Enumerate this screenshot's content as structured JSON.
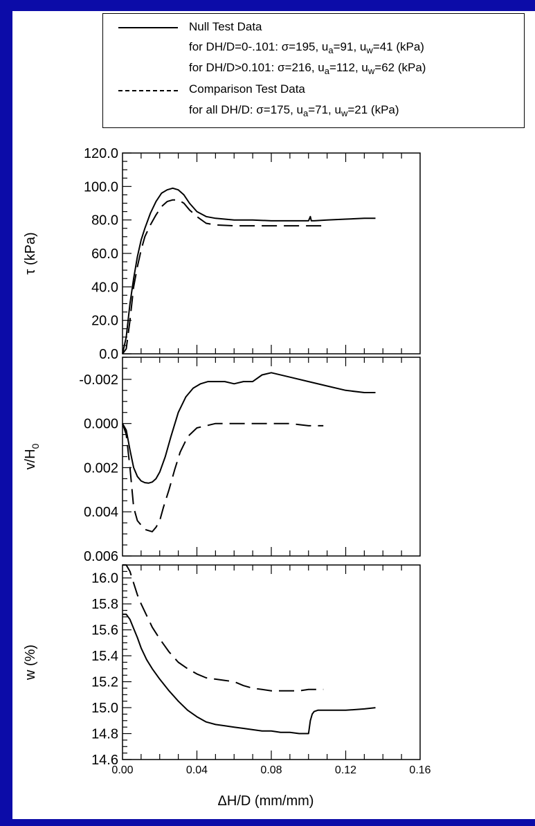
{
  "legend": {
    "null_label": "Null Test Data",
    "null_line1_prefix": "for DH/D=0-.101: σ=195, u",
    "null_line1_ua_sub": "a",
    "null_line1_mid": "=91, u",
    "null_line1_uw_sub": "w",
    "null_line1_end": "=41 (kPa)",
    "null_line2_prefix": "for DH/D>0.101: σ=216, u",
    "null_line2_ua_sub": "a",
    "null_line2_mid": "=112, u",
    "null_line2_uw_sub": "w",
    "null_line2_end": "=62 (kPa)",
    "comp_label": "Comparison Test Data",
    "comp_line_prefix": "for all DH/D: σ=175, u",
    "comp_line_ua_sub": "a",
    "comp_line_mid": "=71, u",
    "comp_line_uw_sub": "w",
    "comp_line_end": "=21 (kPa)"
  },
  "colors": {
    "frame": "#0c0ca8",
    "ink": "#000000"
  },
  "chart_data": [
    {
      "type": "line",
      "ylabel": "τ (kPa)",
      "xlim": [
        0,
        0.16
      ],
      "ylim": [
        0,
        120
      ],
      "yticks": [
        0,
        20,
        40,
        60,
        80,
        100,
        120
      ],
      "ytick_labels": [
        "0.0",
        "20.0",
        "40.0",
        "60.0",
        "80.0",
        "100.0",
        "120.0"
      ],
      "series": [
        {
          "name": "Null Test Data",
          "style": "solid",
          "x": [
            0.0,
            0.002,
            0.004,
            0.006,
            0.008,
            0.01,
            0.012,
            0.015,
            0.018,
            0.021,
            0.024,
            0.027,
            0.03,
            0.033,
            0.036,
            0.04,
            0.045,
            0.05,
            0.06,
            0.07,
            0.08,
            0.09,
            0.1,
            0.101,
            0.1015,
            0.103,
            0.11,
            0.12,
            0.13,
            0.136
          ],
          "y": [
            0,
            10,
            30,
            45,
            58,
            68,
            75,
            84,
            91,
            96,
            98,
            99,
            98,
            95,
            90,
            85,
            82,
            81,
            80,
            80,
            79.5,
            79.5,
            79.5,
            82,
            79.5,
            79.5,
            80,
            80.5,
            81,
            81
          ]
        },
        {
          "name": "Comparison Test Data",
          "style": "dashed",
          "x": [
            0.0,
            0.002,
            0.004,
            0.006,
            0.008,
            0.01,
            0.012,
            0.015,
            0.018,
            0.021,
            0.024,
            0.027,
            0.03,
            0.033,
            0.036,
            0.04,
            0.045,
            0.05,
            0.06,
            0.07,
            0.08,
            0.09,
            0.1,
            0.108
          ],
          "y": [
            0,
            3,
            20,
            40,
            52,
            62,
            70,
            77,
            83,
            88,
            91,
            92,
            92,
            90,
            86,
            82,
            78,
            77,
            76.5,
            76.5,
            76.5,
            76.5,
            76.5,
            76.5
          ]
        }
      ]
    },
    {
      "type": "line",
      "ylabel_main": "v/H",
      "ylabel_sub": "0",
      "xlim": [
        0,
        0.16
      ],
      "ylim": [
        0.006,
        -0.003
      ],
      "yticks": [
        -0.002,
        0.0,
        0.002,
        0.004,
        0.006
      ],
      "ytick_labels": [
        "-0.002",
        "0.000",
        "0.002",
        "0.004",
        "0.006"
      ],
      "series": [
        {
          "name": "Null Test Data",
          "style": "solid",
          "x": [
            0.0,
            0.002,
            0.004,
            0.006,
            0.008,
            0.01,
            0.012,
            0.014,
            0.016,
            0.018,
            0.02,
            0.023,
            0.026,
            0.03,
            0.034,
            0.038,
            0.042,
            0.046,
            0.05,
            0.055,
            0.06,
            0.065,
            0.07,
            0.075,
            0.08,
            0.09,
            0.1,
            0.11,
            0.12,
            0.13,
            0.136
          ],
          "y": [
            0.0,
            0.0003,
            0.0012,
            0.002,
            0.0024,
            0.0026,
            0.00268,
            0.0027,
            0.00265,
            0.0025,
            0.0022,
            0.0015,
            0.0006,
            -0.0005,
            -0.0012,
            -0.0016,
            -0.0018,
            -0.0019,
            -0.0019,
            -0.0019,
            -0.0018,
            -0.0019,
            -0.0019,
            -0.0022,
            -0.0023,
            -0.0021,
            -0.0019,
            -0.0017,
            -0.0015,
            -0.0014,
            -0.0014
          ]
        },
        {
          "name": "Comparison Test Data",
          "style": "dashed",
          "x": [
            0.0,
            0.002,
            0.004,
            0.006,
            0.008,
            0.01,
            0.012,
            0.014,
            0.016,
            0.018,
            0.02,
            0.022,
            0.025,
            0.028,
            0.031,
            0.035,
            0.04,
            0.045,
            0.05,
            0.055,
            0.06,
            0.07,
            0.08,
            0.09,
            0.1,
            0.108
          ],
          "y": [
            0.0,
            0.0005,
            0.002,
            0.0038,
            0.0044,
            0.0046,
            0.0048,
            0.00485,
            0.0049,
            0.0047,
            0.0044,
            0.0038,
            0.003,
            0.0021,
            0.0013,
            0.0006,
            0.0002,
            0.0001,
            0.0,
            0.0,
            0.0,
            0.0,
            0.0,
            0.0,
            0.0001,
            0.0001
          ]
        }
      ]
    },
    {
      "type": "line",
      "ylabel": "w (%)",
      "xlabel": "ΔH/D (mm/mm)",
      "xlim": [
        0,
        0.16
      ],
      "xticks": [
        0,
        0.04,
        0.08,
        0.12,
        0.16
      ],
      "xtick_labels": [
        "0.00",
        "0.04",
        "0.08",
        "0.12",
        "0.16"
      ],
      "ylim": [
        14.6,
        16.1
      ],
      "yticks": [
        14.6,
        14.8,
        15.0,
        15.2,
        15.4,
        15.6,
        15.8,
        16.0
      ],
      "ytick_labels": [
        "14.6",
        "14.8",
        "15.0",
        "15.2",
        "15.4",
        "15.6",
        "15.8",
        "16.0"
      ],
      "series": [
        {
          "name": "Null Test Data",
          "style": "solid",
          "x": [
            0.0,
            0.002,
            0.004,
            0.006,
            0.008,
            0.01,
            0.013,
            0.016,
            0.02,
            0.025,
            0.03,
            0.035,
            0.04,
            0.045,
            0.05,
            0.055,
            0.06,
            0.065,
            0.07,
            0.075,
            0.08,
            0.085,
            0.09,
            0.095,
            0.1,
            0.101,
            0.102,
            0.103,
            0.105,
            0.11,
            0.12,
            0.13,
            0.136
          ],
          "y": [
            15.72,
            15.72,
            15.68,
            15.61,
            15.54,
            15.46,
            15.37,
            15.3,
            15.22,
            15.13,
            15.05,
            14.98,
            14.93,
            14.89,
            14.87,
            14.86,
            14.85,
            14.84,
            14.83,
            14.82,
            14.82,
            14.81,
            14.81,
            14.8,
            14.8,
            14.9,
            14.95,
            14.97,
            14.98,
            14.98,
            14.98,
            14.99,
            15.0
          ]
        },
        {
          "name": "Comparison Test Data",
          "style": "dashed",
          "x": [
            0.0,
            0.002,
            0.004,
            0.006,
            0.008,
            0.01,
            0.013,
            0.016,
            0.02,
            0.025,
            0.03,
            0.035,
            0.04,
            0.045,
            0.05,
            0.055,
            0.06,
            0.065,
            0.07,
            0.075,
            0.08,
            0.085,
            0.09,
            0.095,
            0.1,
            0.105,
            0.108
          ],
          "y": [
            16.12,
            16.1,
            16.05,
            15.96,
            15.87,
            15.8,
            15.71,
            15.62,
            15.53,
            15.43,
            15.35,
            15.3,
            15.26,
            15.23,
            15.22,
            15.21,
            15.2,
            15.17,
            15.15,
            15.14,
            15.13,
            15.13,
            15.13,
            15.13,
            15.14,
            15.14,
            15.14
          ]
        }
      ]
    }
  ]
}
